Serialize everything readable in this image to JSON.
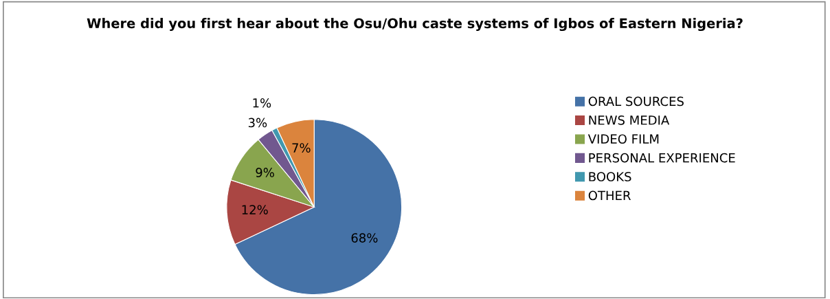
{
  "chart_data": {
    "type": "pie",
    "title": "Where did you first hear about the Osu/Ohu caste systems of Igbos of Eastern Nigeria?",
    "categories": [
      "ORAL SOURCES",
      "NEWS MEDIA",
      "VIDEO FILM",
      "PERSONAL EXPERIENCE",
      "BOOKS",
      "OTHER"
    ],
    "values": [
      68,
      12,
      9,
      3,
      1,
      7
    ],
    "colors": [
      "#4572a7",
      "#aa4643",
      "#89a54e",
      "#71588f",
      "#4198af",
      "#db843d"
    ],
    "value_labels": [
      "68%",
      "12%",
      "9%",
      "3%",
      "1%",
      "7%"
    ],
    "legend": "right"
  }
}
